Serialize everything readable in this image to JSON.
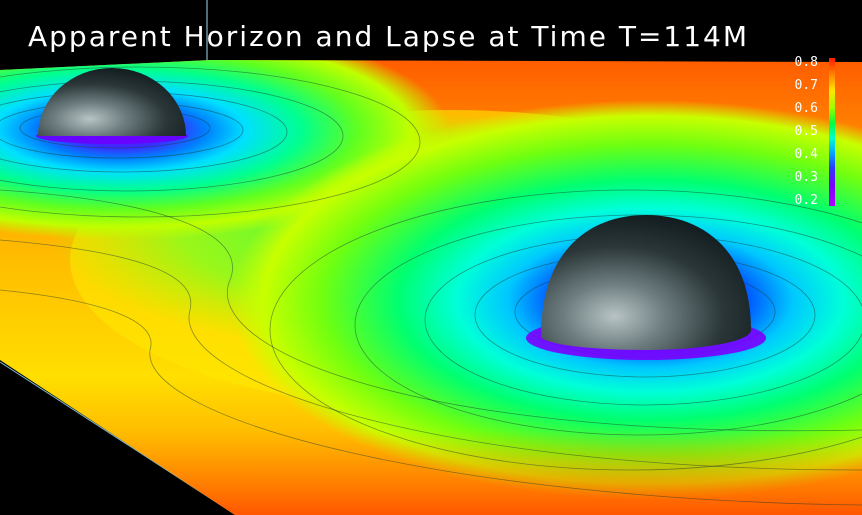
{
  "title": "Apparent Horizon and Lapse at Time T=114M",
  "colorbar": {
    "labels": [
      "0.8",
      "0.7",
      "0.6",
      "0.5",
      "0.4",
      "0.3",
      "0.2"
    ],
    "colors": {
      "high": "#ff1a00",
      "mid_high": "#ffe600",
      "mid": "#00ff3a",
      "mid_low": "#00a8ff",
      "low": "#9a00ff"
    }
  },
  "scene": {
    "objects": [
      "black-hole-horizon-left",
      "black-hole-horizon-right",
      "lapse-surface"
    ]
  }
}
